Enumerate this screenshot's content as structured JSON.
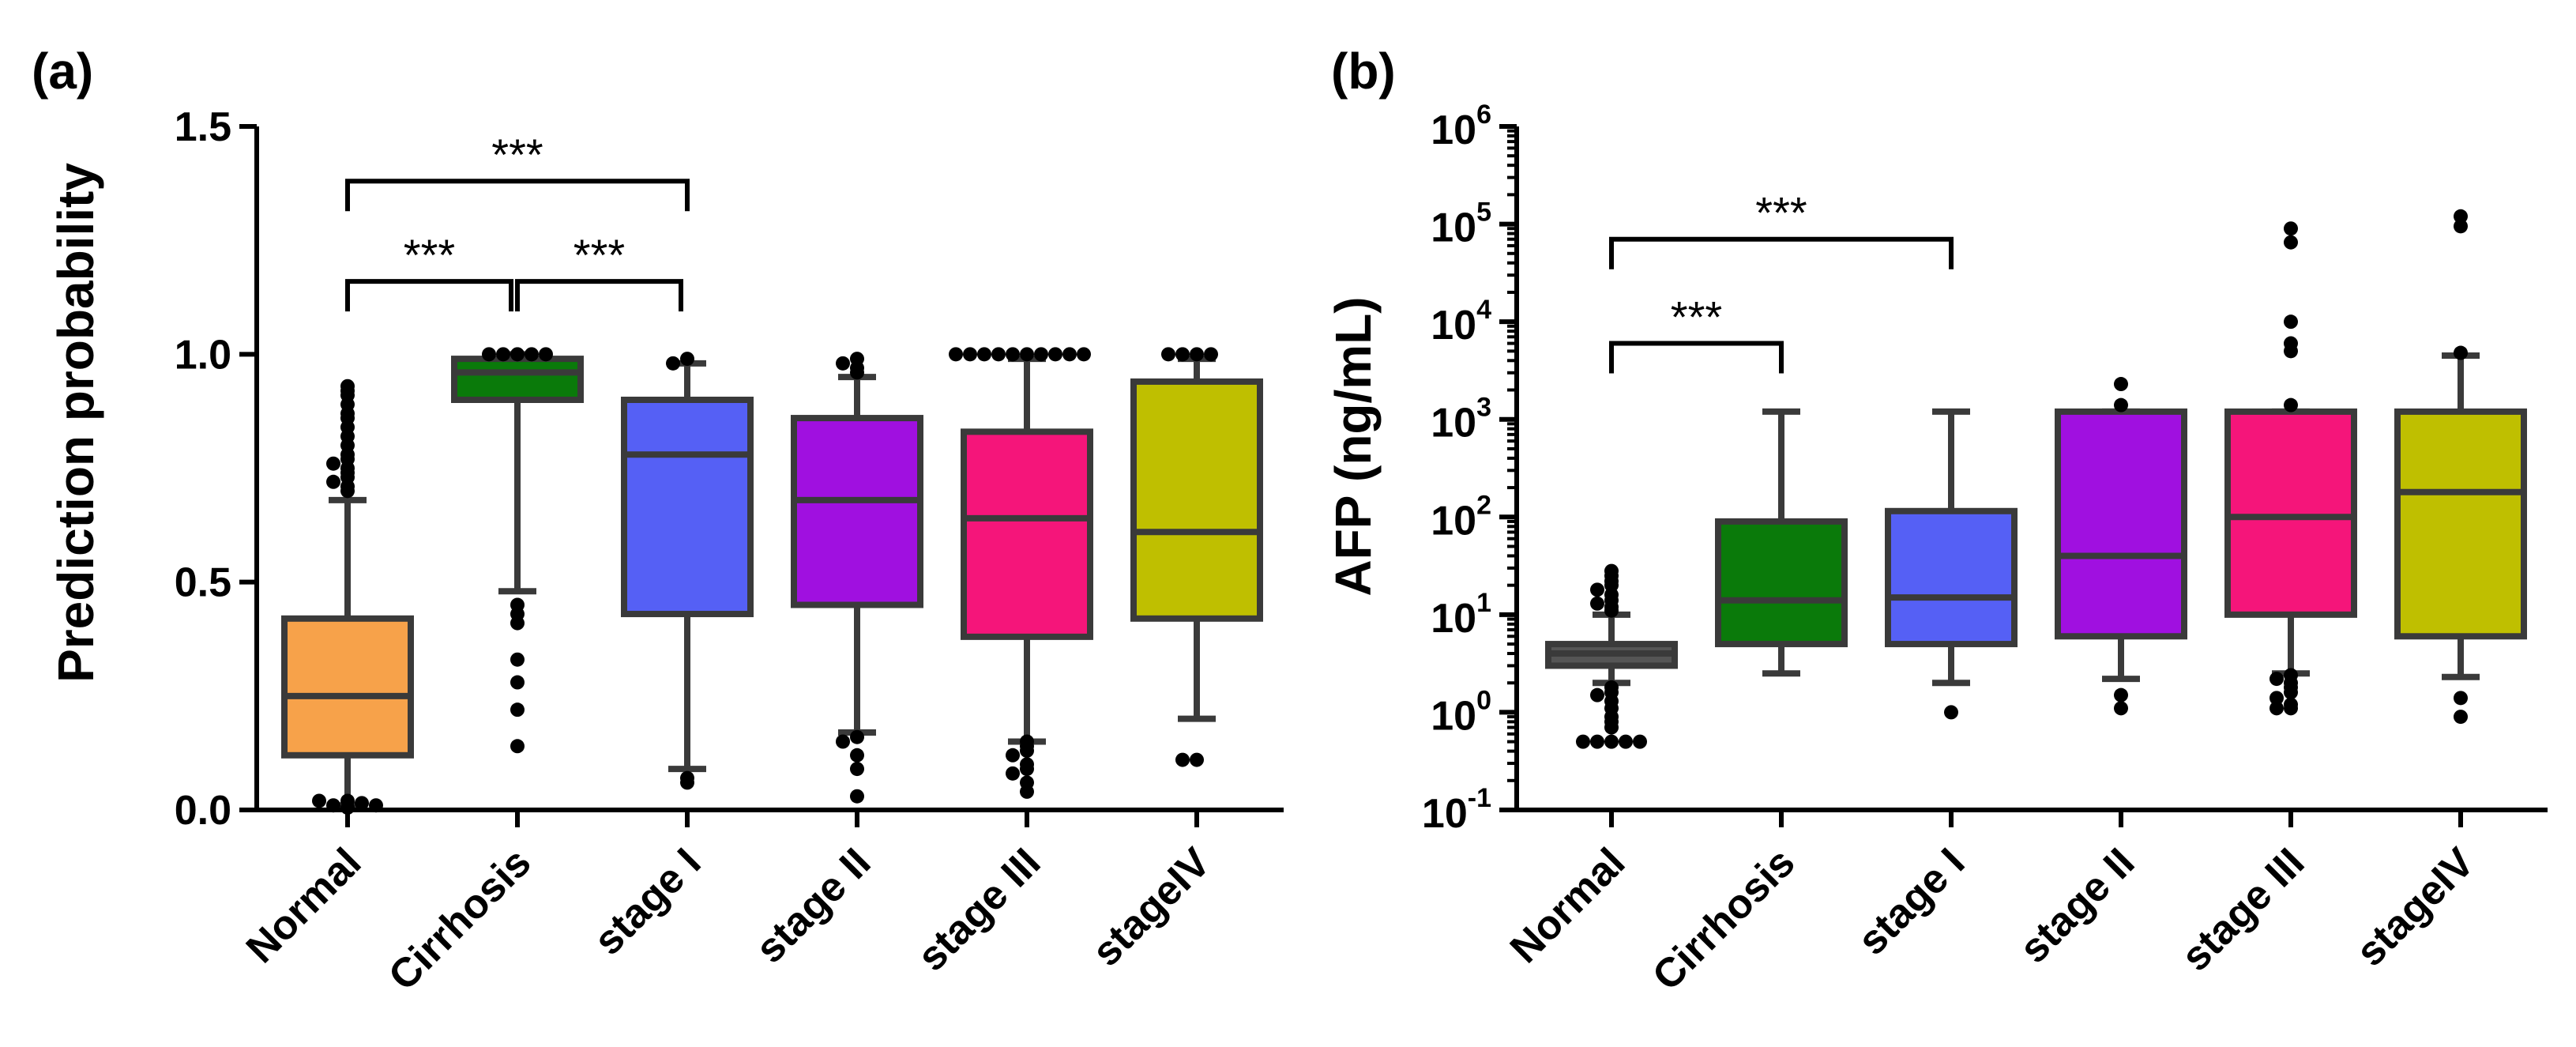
{
  "chart_data": [
    {
      "panel_label": "(a)",
      "type": "box",
      "ylabel": "Prediction probability",
      "xlabel": "",
      "ylim": [
        0,
        1.5
      ],
      "yscale": "linear",
      "y_ticks": [
        "0.0",
        "0.5",
        "1.0",
        "1.5"
      ],
      "y_tick_values": [
        0,
        0.5,
        1.0,
        1.5
      ],
      "categories": [
        "Normal",
        "Cirrhosis",
        "stage I",
        "stage II",
        "stage III",
        "stageIV"
      ],
      "colors": [
        "#F7A24A",
        "#0A7A0A",
        "#5560F5",
        "#A010E0",
        "#F5157A",
        "#BFBF00"
      ],
      "boxes": [
        {
          "whisker_low": 0.01,
          "q1": 0.12,
          "median": 0.25,
          "q3": 0.42,
          "whisker_high": 0.68
        },
        {
          "whisker_low": 0.48,
          "q1": 0.9,
          "median": 0.96,
          "q3": 0.99,
          "whisker_high": 1.0
        },
        {
          "whisker_low": 0.09,
          "q1": 0.43,
          "median": 0.78,
          "q3": 0.9,
          "whisker_high": 0.98
        },
        {
          "whisker_low": 0.17,
          "q1": 0.45,
          "median": 0.68,
          "q3": 0.86,
          "whisker_high": 0.95
        },
        {
          "whisker_low": 0.15,
          "q1": 0.38,
          "median": 0.64,
          "q3": 0.83,
          "whisker_high": 0.99
        },
        {
          "whisker_low": 0.2,
          "q1": 0.42,
          "median": 0.61,
          "q3": 0.94,
          "whisker_high": 0.99
        }
      ],
      "outliers": [
        [
          0.93,
          0.92,
          0.91,
          0.89,
          0.87,
          0.86,
          0.84,
          0.82,
          0.8,
          0.78,
          0.77,
          0.76,
          0.75,
          0.74,
          0.73,
          0.72,
          0.71,
          0.7,
          0.02,
          0.01,
          0.015,
          0.005,
          0.02,
          0.01
        ],
        [
          1.0,
          1.0,
          1.0,
          1.0,
          1.0,
          0.45,
          0.43,
          0.41,
          0.33,
          0.28,
          0.22,
          0.14
        ],
        [
          0.99,
          0.98,
          0.07,
          0.06
        ],
        [
          0.99,
          0.98,
          0.97,
          0.96,
          0.16,
          0.15,
          0.12,
          0.09,
          0.03
        ],
        [
          1.0,
          1.0,
          1.0,
          1.0,
          1.0,
          1.0,
          1.0,
          1.0,
          1.0,
          1.0,
          0.15,
          0.14,
          0.13,
          0.12,
          0.1,
          0.09,
          0.08,
          0.06,
          0.04
        ],
        [
          1.0,
          1.0,
          1.0,
          1.0,
          0.11,
          0.11
        ]
      ],
      "significance": [
        {
          "from": 0,
          "to": 2,
          "y": 1.38,
          "label": "***"
        },
        {
          "from": 0,
          "to": 1,
          "y": 1.16,
          "label": "***"
        },
        {
          "from": 1,
          "to": 2,
          "y": 1.16,
          "label": "***"
        }
      ]
    },
    {
      "panel_label": "(b)",
      "type": "box",
      "ylabel": "AFP (ng/mL)",
      "xlabel": "",
      "ylim": [
        0.1,
        1000000
      ],
      "yscale": "log",
      "y_ticks": [
        {
          "base": "10",
          "exp": "-1"
        },
        {
          "base": "10",
          "exp": "0"
        },
        {
          "base": "10",
          "exp": "1"
        },
        {
          "base": "10",
          "exp": "2"
        },
        {
          "base": "10",
          "exp": "3"
        },
        {
          "base": "10",
          "exp": "4"
        },
        {
          "base": "10",
          "exp": "5"
        },
        {
          "base": "10",
          "exp": "6"
        }
      ],
      "y_tick_values": [
        0.1,
        1,
        10,
        100,
        1000,
        10000,
        100000,
        1000000
      ],
      "categories": [
        "Normal",
        "Cirrhosis",
        "stage I",
        "stage II",
        "stage III",
        "stageIV"
      ],
      "colors": [
        "#555555",
        "#0A7A0A",
        "#5560F5",
        "#A010E0",
        "#F5157A",
        "#BFBF00"
      ],
      "boxes": [
        {
          "whisker_low": 2.0,
          "q1": 3.0,
          "median": 4.0,
          "q3": 5.0,
          "whisker_high": 10.0
        },
        {
          "whisker_low": 2.5,
          "q1": 5.0,
          "median": 14.0,
          "q3": 90.0,
          "whisker_high": 1200.0
        },
        {
          "whisker_low": 2.0,
          "q1": 5.0,
          "median": 15.0,
          "q3": 115.0,
          "whisker_high": 1200.0
        },
        {
          "whisker_low": 2.2,
          "q1": 6.0,
          "median": 40.0,
          "q3": 1200.0,
          "whisker_high": 1200.0
        },
        {
          "whisker_low": 2.5,
          "q1": 10.0,
          "median": 100.0,
          "q3": 1200.0,
          "whisker_high": 1200.0
        },
        {
          "whisker_low": 2.3,
          "q1": 6.0,
          "median": 180.0,
          "q3": 1200.0,
          "whisker_high": 4500.0
        }
      ],
      "outliers": [
        [
          28,
          25,
          22,
          20,
          18,
          16,
          14,
          13,
          12,
          11,
          1.8,
          1.6,
          1.5,
          1.3,
          1.1,
          0.9,
          0.8,
          0.7,
          0.5,
          0.5,
          0.5,
          0.5,
          0.5
        ],
        [],
        [
          1.0
        ],
        [
          2300,
          1400,
          1.5,
          1.1
        ],
        [
          90000,
          65000,
          10000,
          6000,
          5000,
          1400,
          2.4,
          2.2,
          2.0,
          1.8,
          1.6,
          1.4,
          1.2,
          1.1,
          1.1
        ],
        [
          120000,
          95000,
          4800,
          1.4,
          0.9
        ]
      ],
      "significance": [
        {
          "from": 0,
          "to": 2,
          "y": 70000,
          "label": "***"
        },
        {
          "from": 0,
          "to": 1,
          "y": 6000,
          "label": "***"
        }
      ]
    }
  ]
}
